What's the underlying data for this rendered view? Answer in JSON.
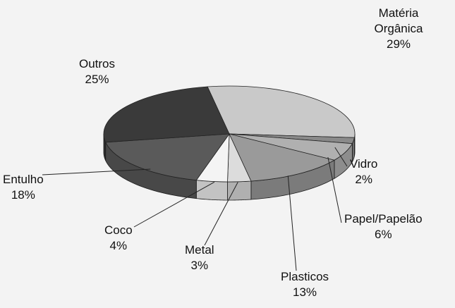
{
  "chart_data": {
    "type": "pie",
    "categories": [
      "Matéria Orgânica",
      "Vidro",
      "Papel/Papelão",
      "Plasticos",
      "Metal",
      "Coco",
      "Entulho",
      "Outros"
    ],
    "values": [
      29,
      2,
      6,
      13,
      3,
      4,
      18,
      25
    ],
    "value_labels": [
      "29%",
      "2%",
      "6%",
      "13%",
      "3%",
      "4%",
      "18%",
      "25%"
    ],
    "colors": [
      "#c9c9c9",
      "#8a8a8a",
      "#b0b0b0",
      "#9a9a9a",
      "#dcdcdc",
      "#f4f4f4",
      "#5a5a5a",
      "#3a3a3a"
    ]
  }
}
